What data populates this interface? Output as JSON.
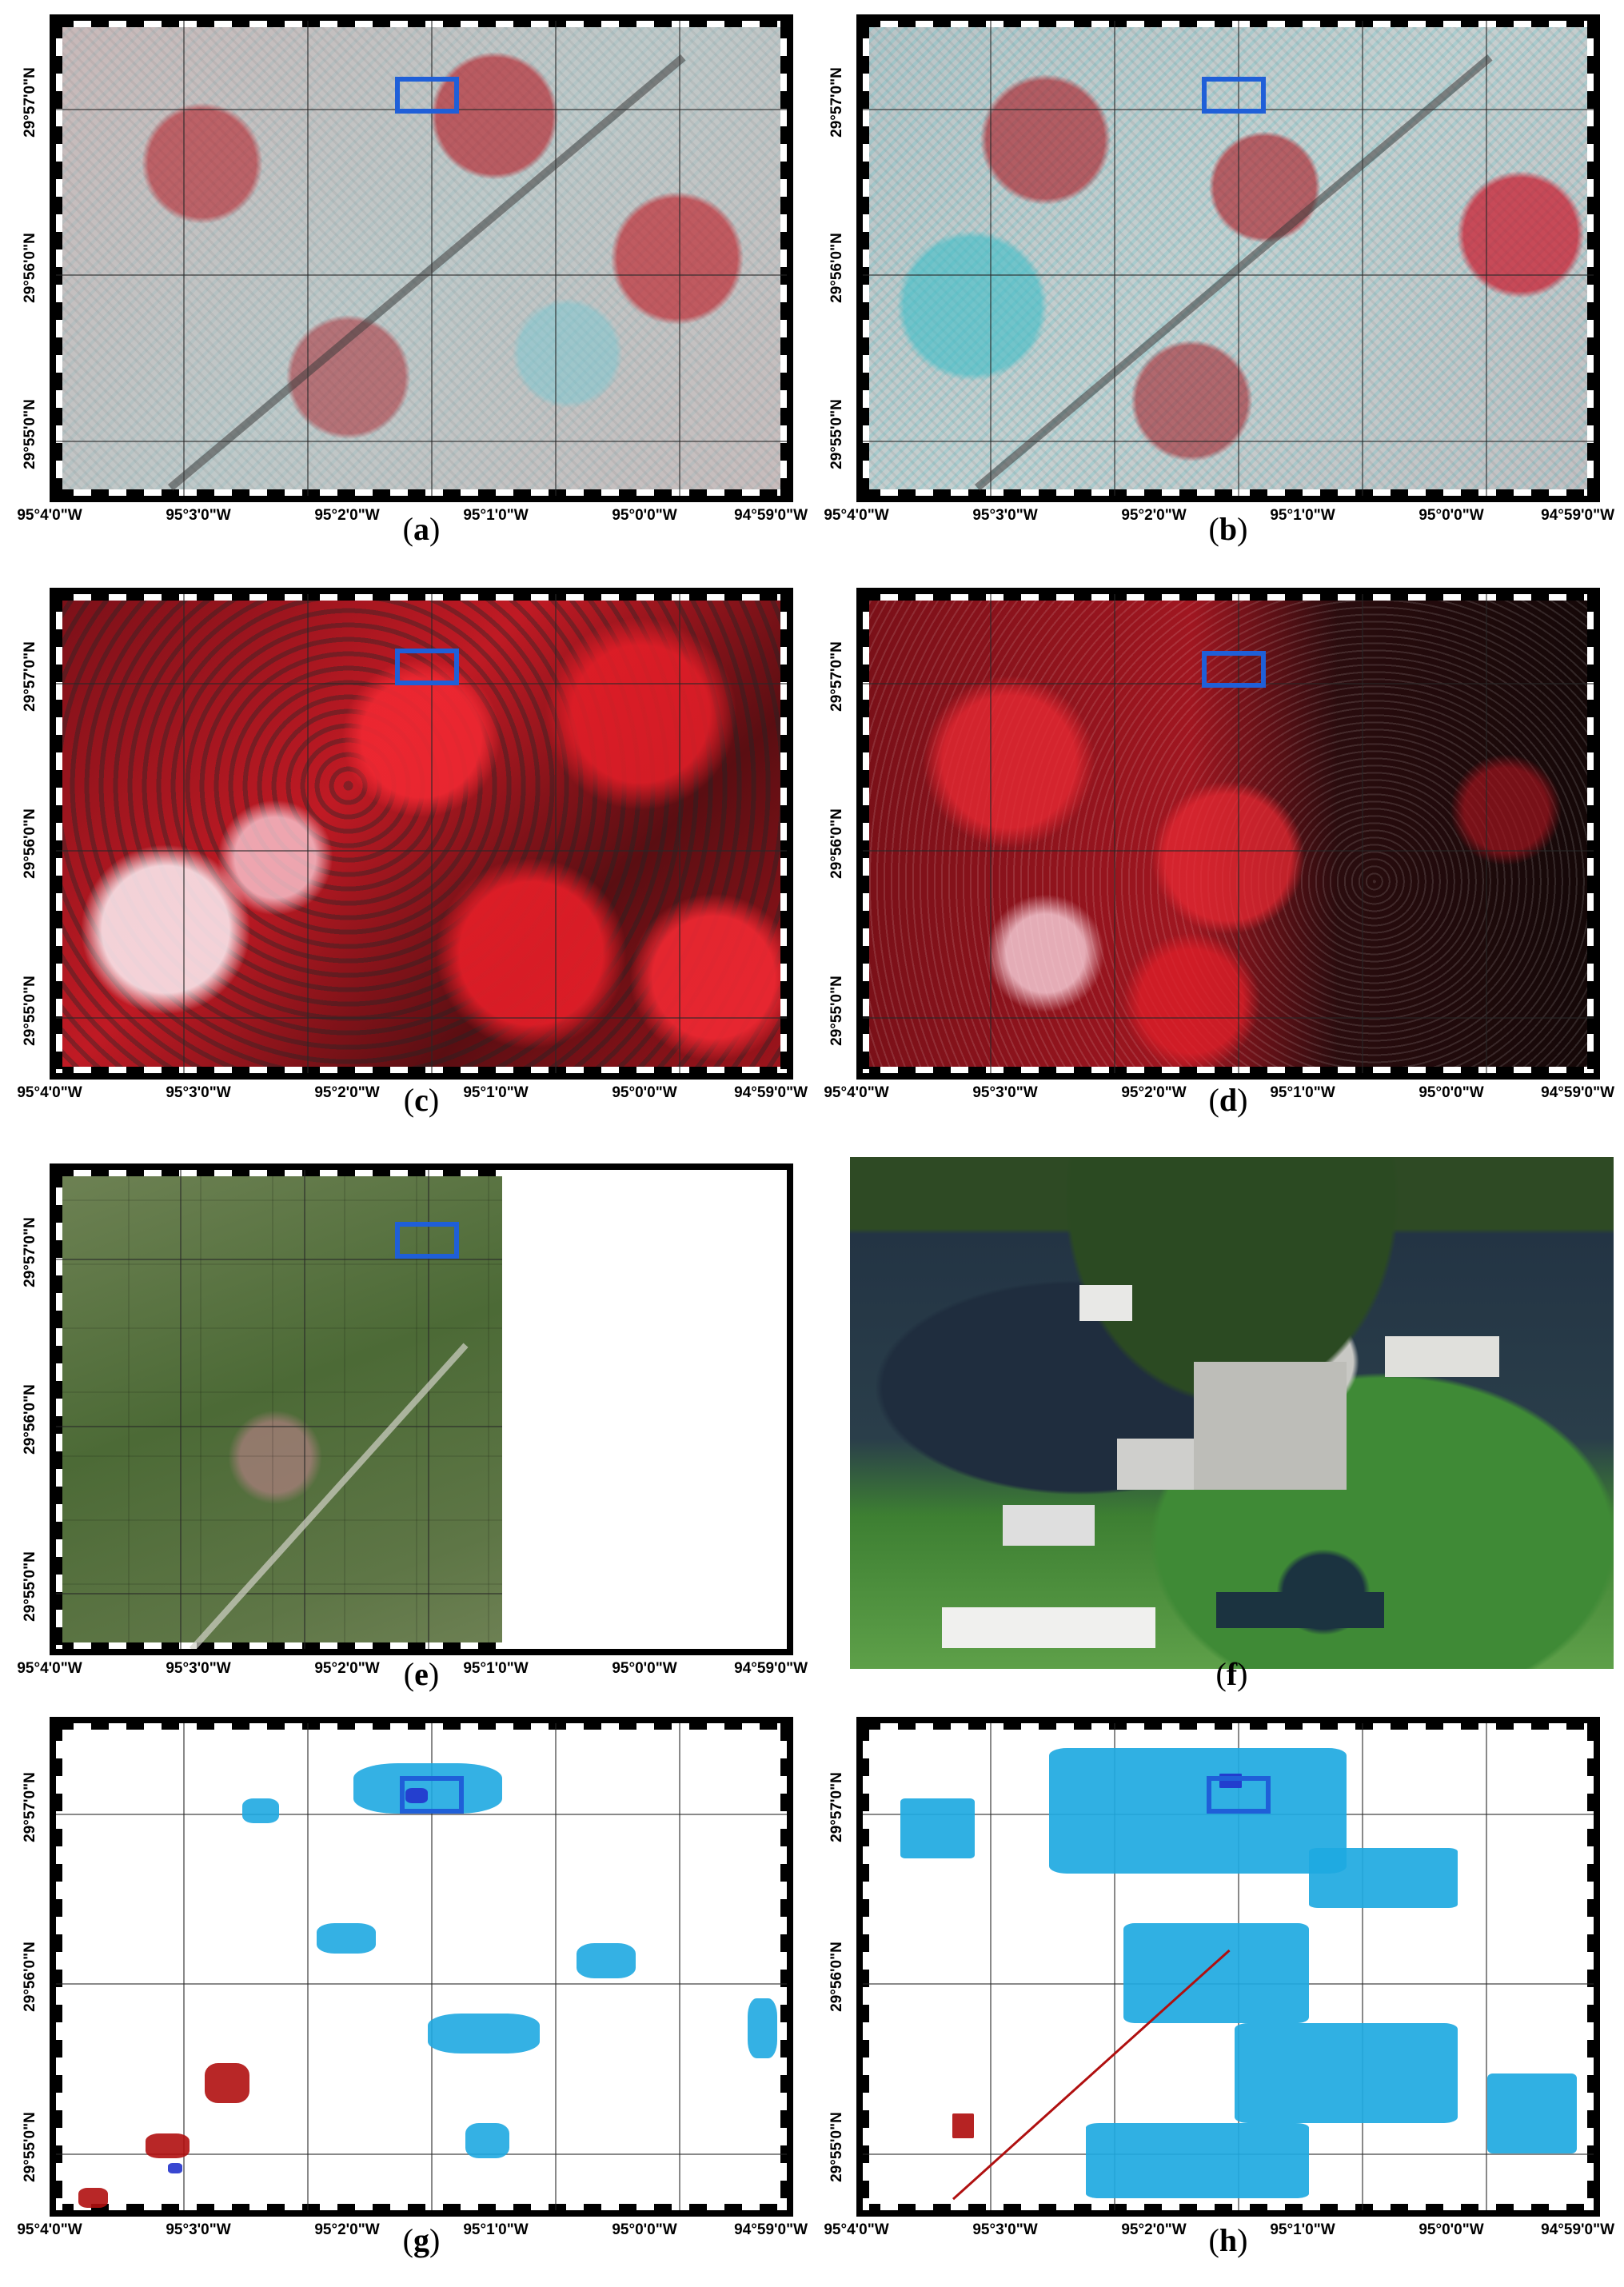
{
  "figure": {
    "x_tick_labels": [
      "95°4'0\"W",
      "95°3'0\"W",
      "95°2'0\"W",
      "95°1'0\"W",
      "95°0'0\"W",
      "94°59'0\"W"
    ],
    "y_tick_labels": [
      "29°57'0\"N",
      "29°56'0\"N",
      "29°55'0\"N"
    ],
    "roi_color": "#1f5fd8",
    "legend_colors": {
      "flooded_class_light": "#1ea9e1",
      "flooded_class_dark": "#2233cc",
      "change_class": "#b01010"
    }
  },
  "panels": [
    {
      "id": "a",
      "caption_open": "(",
      "caption_letter": "a",
      "caption_close": ")",
      "image": "sar-rgb-composite-pre-event"
    },
    {
      "id": "b",
      "caption_open": "(",
      "caption_letter": "b",
      "caption_close": ")",
      "image": "sar-rgb-composite-post-event"
    },
    {
      "id": "c",
      "caption_open": "(",
      "caption_letter": "c",
      "caption_close": ")",
      "image": "coherence-composite-coarse"
    },
    {
      "id": "d",
      "caption_open": "(",
      "caption_letter": "d",
      "caption_close": ")",
      "image": "coherence-composite-fine"
    },
    {
      "id": "e",
      "caption_open": "(",
      "caption_letter": "e",
      "caption_close": ")",
      "image": "optical-satellite-image"
    },
    {
      "id": "f",
      "caption_open": "(",
      "caption_letter": "f",
      "caption_close": ")",
      "image": "aerial-photo-flooded-industrial-site"
    },
    {
      "id": "g",
      "caption_open": "(",
      "caption_letter": "g",
      "caption_close": ")",
      "image": "flood-map-classification-1"
    },
    {
      "id": "h",
      "caption_open": "(",
      "caption_letter": "h",
      "caption_close": ")",
      "image": "flood-map-classification-2"
    }
  ]
}
